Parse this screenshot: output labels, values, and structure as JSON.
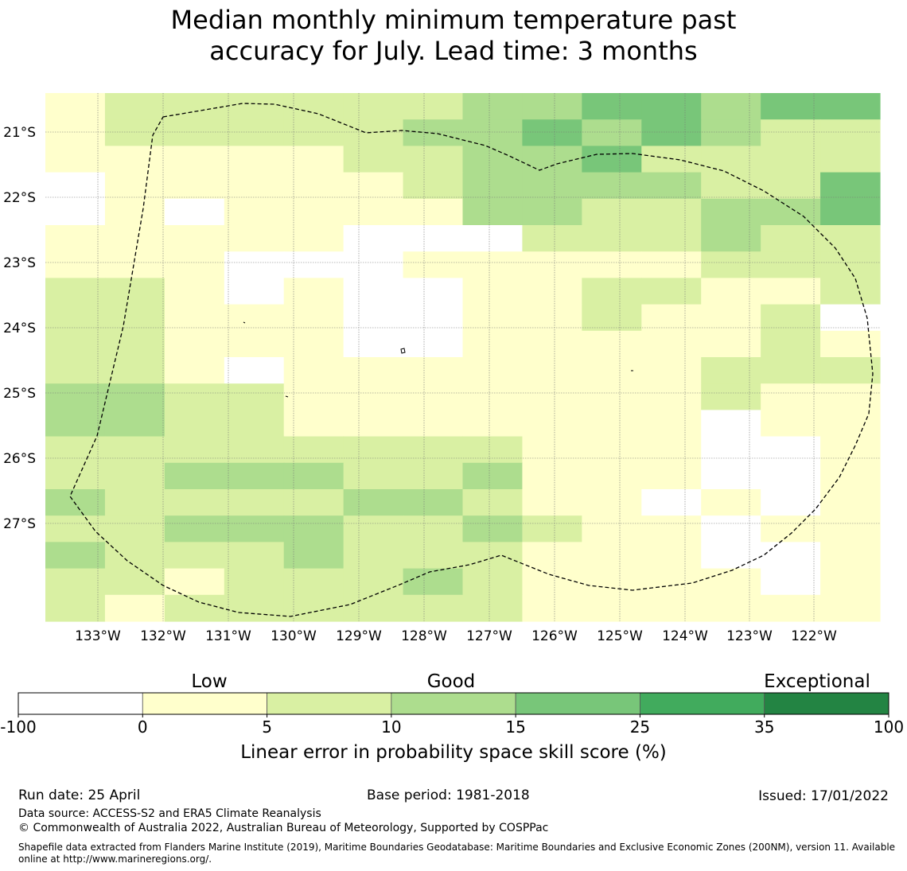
{
  "title_line1": "Median monthly minimum temperature past",
  "title_line2": "accuracy for July. Lead time: 3 months",
  "map": {
    "lon_labels": [
      "133°W",
      "132°W",
      "131°W",
      "130°W",
      "129°W",
      "128°W",
      "127°W",
      "126°W",
      "125°W",
      "124°W",
      "123°W",
      "122°W"
    ],
    "lat_labels": [
      "21°S",
      "22°S",
      "23°S",
      "24°S",
      "25°S",
      "26°S",
      "27°S"
    ],
    "lon_start": -134.8,
    "lon_step": 0.833,
    "lat_start": -20.5,
    "lat_step": -0.556,
    "grid": [
      "12222223344344",
      "12222233434322",
      "11111223342222",
      "01111123333224",
      "01011113322334",
      "11111000222322",
      "11100011111222",
      "22101001122112",
      "22111001121120",
      "22111001111121",
      "22101111111222",
      "33221111111211",
      "33221111111011",
      "22222222111001",
      "22333223111001",
      "32222332110101",
      "22333223211011",
      "32223222111001",
      "22122232111101",
      "21222222111111"
    ],
    "grid_value_meaning": "0: -100..0, 1: 0..5, 2: 5..10, 3: 10..15, 4: 15..25, 5: 25..35, 6: 35..100"
  },
  "colors": {
    "bins": [
      "#ffffff",
      "#ffffcc",
      "#d9f0a3",
      "#addd8e",
      "#78c679",
      "#41ab5d",
      "#238443"
    ],
    "boundary": "#000000"
  },
  "legend": {
    "categories": [
      "Low",
      "Good",
      "Exceptional"
    ],
    "ticks": [
      "-100",
      "0",
      "5",
      "10",
      "15",
      "25",
      "35",
      "100"
    ],
    "label": "Linear error in probability space skill score (%)"
  },
  "footer": {
    "run_date": "Run date: 25 April",
    "base_period": "Base period: 1981-2018",
    "issued": "Issued: 17/01/2022",
    "data_source": "Data source: ACCESS-S2 and ERA5 Climate Reanalysis",
    "copyright": "© Commonwealth of Australia 2022, Australian Bureau of Meteorology, Supported by COSPPac",
    "shapefile": "Shapefile data extracted from Flanders Marine Institute (2019), Maritime Boundaries Geodatabase: Maritime Boundaries and Exclusive Economic Zones (200NM), version 11. Available online at http://www.marineregions.org/."
  }
}
